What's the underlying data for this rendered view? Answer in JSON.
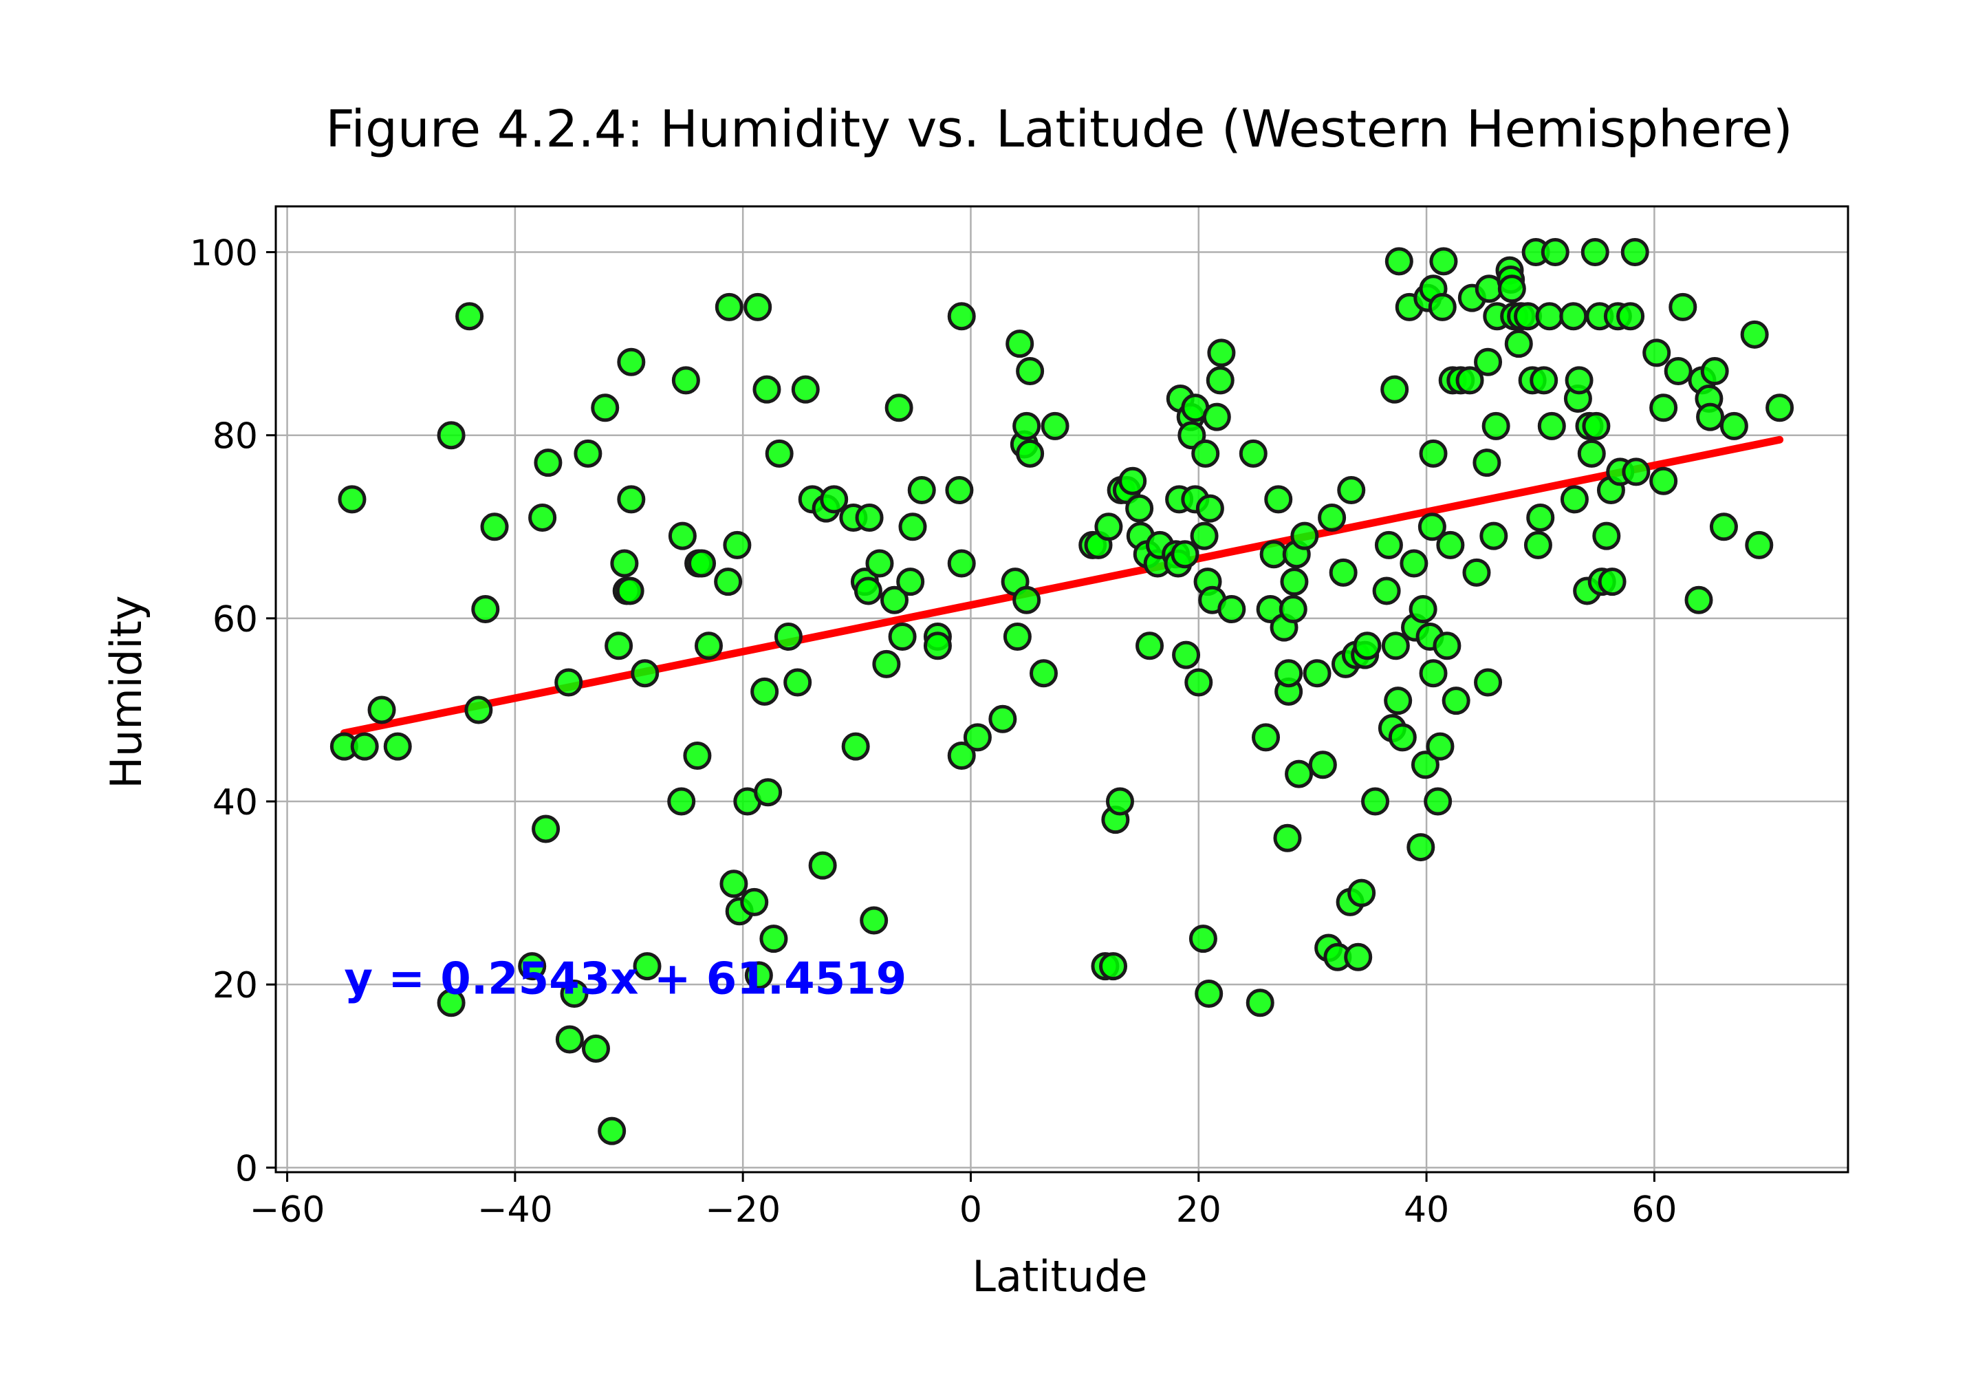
{
  "chart_data": {
    "type": "scatter",
    "title": "Figure 4.2.4: Humidity vs. Latitude (Western Hemisphere)",
    "xlabel": "Latitude",
    "ylabel": "Humidity",
    "xlim": [
      -61,
      77
    ],
    "ylim": [
      -0.5,
      105
    ],
    "xticks": [
      -60,
      -40,
      -20,
      0,
      20,
      40,
      60
    ],
    "xtick_labels": [
      "−60",
      "−40",
      "−20",
      "0",
      "20",
      "40",
      "60"
    ],
    "yticks": [
      0,
      20,
      40,
      60,
      80,
      100
    ],
    "ytick_labels": [
      "0",
      "20",
      "40",
      "60",
      "80",
      "100"
    ],
    "grid": true,
    "marker_color": "#00ff00",
    "marker_edge_color": "#1a1a1a",
    "regression": {
      "slope": 0.2543,
      "intercept": 61.4519,
      "x_range": [
        -55,
        71
      ],
      "color": "#ff0000",
      "equation_label": "y = 0.2543x + 61.4519",
      "label_color": "#0000ff",
      "label_at": [
        -55,
        19
      ]
    },
    "points": [
      [
        -55,
        46
      ],
      [
        -54.3,
        73
      ],
      [
        -53.2,
        46
      ],
      [
        -51.7,
        50
      ],
      [
        -50.3,
        46
      ],
      [
        -45.6,
        80
      ],
      [
        -45.6,
        18
      ],
      [
        -44,
        93
      ],
      [
        -43.2,
        50
      ],
      [
        -42.6,
        61
      ],
      [
        -41.8,
        70
      ],
      [
        -38.5,
        22
      ],
      [
        -37.6,
        71
      ],
      [
        -37.3,
        37
      ],
      [
        -37.1,
        77
      ],
      [
        -35.3,
        53
      ],
      [
        -35.2,
        14
      ],
      [
        -34.8,
        19
      ],
      [
        -33.6,
        78
      ],
      [
        -32.9,
        13
      ],
      [
        -32.1,
        83
      ],
      [
        -31.5,
        4
      ],
      [
        -30.9,
        57
      ],
      [
        -30.4,
        66
      ],
      [
        -30.2,
        63
      ],
      [
        -29.9,
        63
      ],
      [
        -29.8,
        88
      ],
      [
        -29.8,
        73
      ],
      [
        -28.6,
        54
      ],
      [
        -28.4,
        22
      ],
      [
        -25.4,
        40
      ],
      [
        -25.3,
        69
      ],
      [
        -25.0,
        86
      ],
      [
        -24.0,
        45
      ],
      [
        -23.9,
        66
      ],
      [
        -23.6,
        66
      ],
      [
        -23.0,
        57
      ],
      [
        -21.3,
        64
      ],
      [
        -21.2,
        94
      ],
      [
        -20.8,
        31
      ],
      [
        -20.5,
        68
      ],
      [
        -20.3,
        28
      ],
      [
        -19.6,
        40
      ],
      [
        -19.0,
        29
      ],
      [
        -18.7,
        94
      ],
      [
        -18.6,
        21
      ],
      [
        -18.1,
        52
      ],
      [
        -17.9,
        85
      ],
      [
        -17.8,
        41
      ],
      [
        -17.3,
        25
      ],
      [
        -16.8,
        78
      ],
      [
        -16.0,
        58
      ],
      [
        -15.2,
        53
      ],
      [
        -14.5,
        85
      ],
      [
        -13.9,
        73
      ],
      [
        -13.0,
        33
      ],
      [
        -12.7,
        72
      ],
      [
        -12.0,
        73
      ],
      [
        -10.3,
        71
      ],
      [
        -10.1,
        46
      ],
      [
        -9.3,
        64
      ],
      [
        -9.0,
        63
      ],
      [
        -8.9,
        71
      ],
      [
        -8.5,
        27
      ],
      [
        -8.0,
        66
      ],
      [
        -7.4,
        55
      ],
      [
        -6.7,
        62
      ],
      [
        -6.3,
        83
      ],
      [
        -6.0,
        58
      ],
      [
        -5.3,
        64
      ],
      [
        -5.1,
        70
      ],
      [
        -4.3,
        74
      ],
      [
        -2.9,
        58
      ],
      [
        -2.9,
        57
      ],
      [
        -1.0,
        74
      ],
      [
        -0.8,
        45
      ],
      [
        -0.8,
        66
      ],
      [
        -0.8,
        93
      ],
      [
        0.6,
        47
      ],
      [
        2.8,
        49
      ],
      [
        3.9,
        64
      ],
      [
        4.1,
        58
      ],
      [
        4.3,
        90
      ],
      [
        4.7,
        79
      ],
      [
        4.9,
        81
      ],
      [
        4.9,
        62
      ],
      [
        5.2,
        87
      ],
      [
        5.2,
        78
      ],
      [
        6.4,
        54
      ],
      [
        7.4,
        81
      ],
      [
        10.7,
        68
      ],
      [
        11.2,
        68
      ],
      [
        11.8,
        22
      ],
      [
        12.1,
        70
      ],
      [
        12.5,
        22
      ],
      [
        12.7,
        38
      ],
      [
        13.1,
        40
      ],
      [
        13.2,
        74
      ],
      [
        13.7,
        74
      ],
      [
        14.2,
        75
      ],
      [
        14.8,
        72
      ],
      [
        14.9,
        69
      ],
      [
        15.5,
        67
      ],
      [
        15.7,
        57
      ],
      [
        16.4,
        66
      ],
      [
        16.6,
        68
      ],
      [
        18.0,
        67
      ],
      [
        18.2,
        66
      ],
      [
        18.3,
        73
      ],
      [
        18.4,
        84
      ],
      [
        18.8,
        67
      ],
      [
        18.9,
        56
      ],
      [
        19.3,
        82
      ],
      [
        19.4,
        80
      ],
      [
        19.7,
        73
      ],
      [
        19.7,
        83
      ],
      [
        20.0,
        53
      ],
      [
        20.4,
        25
      ],
      [
        20.5,
        69
      ],
      [
        20.6,
        78
      ],
      [
        20.8,
        64
      ],
      [
        20.9,
        19
      ],
      [
        21.0,
        72
      ],
      [
        21.2,
        62
      ],
      [
        21.6,
        82
      ],
      [
        21.9,
        86
      ],
      [
        22.0,
        89
      ],
      [
        22.9,
        61
      ],
      [
        24.8,
        78
      ],
      [
        25.4,
        18
      ],
      [
        25.9,
        47
      ],
      [
        26.3,
        61
      ],
      [
        26.6,
        67
      ],
      [
        27.0,
        73
      ],
      [
        27.5,
        59
      ],
      [
        27.8,
        36
      ],
      [
        27.9,
        52
      ],
      [
        27.9,
        54
      ],
      [
        28.3,
        61
      ],
      [
        28.4,
        64
      ],
      [
        28.6,
        67
      ],
      [
        28.8,
        43
      ],
      [
        29.3,
        69
      ],
      [
        30.4,
        54
      ],
      [
        30.9,
        44
      ],
      [
        31.4,
        24
      ],
      [
        31.7,
        71
      ],
      [
        32.2,
        23
      ],
      [
        32.7,
        65
      ],
      [
        32.9,
        55
      ],
      [
        33.3,
        29
      ],
      [
        33.4,
        74
      ],
      [
        33.8,
        56
      ],
      [
        34.0,
        23
      ],
      [
        34.3,
        30
      ],
      [
        34.6,
        56
      ],
      [
        34.8,
        57
      ],
      [
        35.5,
        40
      ],
      [
        36.5,
        63
      ],
      [
        36.7,
        68
      ],
      [
        37.0,
        48
      ],
      [
        37.2,
        85
      ],
      [
        37.3,
        57
      ],
      [
        37.5,
        51
      ],
      [
        37.6,
        99
      ],
      [
        37.9,
        47
      ],
      [
        38.5,
        94
      ],
      [
        38.9,
        66
      ],
      [
        39.0,
        59
      ],
      [
        39.5,
        35
      ],
      [
        39.7,
        61
      ],
      [
        39.9,
        44
      ],
      [
        40.1,
        95
      ],
      [
        40.3,
        58
      ],
      [
        40.5,
        70
      ],
      [
        40.6,
        54
      ],
      [
        40.6,
        78
      ],
      [
        40.6,
        96
      ],
      [
        41.0,
        40
      ],
      [
        41.2,
        46
      ],
      [
        41.4,
        94
      ],
      [
        41.5,
        99
      ],
      [
        41.8,
        57
      ],
      [
        42.1,
        68
      ],
      [
        42.3,
        86
      ],
      [
        42.6,
        51
      ],
      [
        43.0,
        86
      ],
      [
        43.8,
        86
      ],
      [
        44.0,
        95
      ],
      [
        44.4,
        65
      ],
      [
        45.3,
        77
      ],
      [
        45.4,
        88
      ],
      [
        45.4,
        53
      ],
      [
        45.5,
        96
      ],
      [
        45.9,
        69
      ],
      [
        46.1,
        81
      ],
      [
        46.2,
        93
      ],
      [
        47.3,
        98
      ],
      [
        47.4,
        97
      ],
      [
        47.5,
        96
      ],
      [
        47.7,
        93
      ],
      [
        48.1,
        90
      ],
      [
        48.3,
        93
      ],
      [
        48.9,
        93
      ],
      [
        49.3,
        86
      ],
      [
        49.6,
        100
      ],
      [
        49.8,
        68
      ],
      [
        50.0,
        71
      ],
      [
        50.3,
        86
      ],
      [
        50.8,
        93
      ],
      [
        51.0,
        81
      ],
      [
        51.3,
        100
      ],
      [
        52.9,
        93
      ],
      [
        53.0,
        73
      ],
      [
        53.3,
        84
      ],
      [
        53.4,
        86
      ],
      [
        54.1,
        63
      ],
      [
        54.3,
        81
      ],
      [
        54.5,
        78
      ],
      [
        54.8,
        100
      ],
      [
        54.9,
        81
      ],
      [
        55.2,
        93
      ],
      [
        55.4,
        64
      ],
      [
        55.8,
        69
      ],
      [
        56.2,
        74
      ],
      [
        56.3,
        64
      ],
      [
        56.8,
        93
      ],
      [
        57.0,
        76
      ],
      [
        57.9,
        93
      ],
      [
        58.3,
        100
      ],
      [
        58.4,
        76
      ],
      [
        60.2,
        89
      ],
      [
        60.8,
        75
      ],
      [
        60.8,
        83
      ],
      [
        62.1,
        87
      ],
      [
        62.5,
        94
      ],
      [
        63.9,
        62
      ],
      [
        64.2,
        86
      ],
      [
        64.8,
        84
      ],
      [
        64.9,
        82
      ],
      [
        65.3,
        87
      ],
      [
        66.1,
        70
      ],
      [
        67.0,
        81
      ],
      [
        68.8,
        91
      ],
      [
        69.2,
        68
      ],
      [
        71.0,
        83
      ]
    ]
  }
}
